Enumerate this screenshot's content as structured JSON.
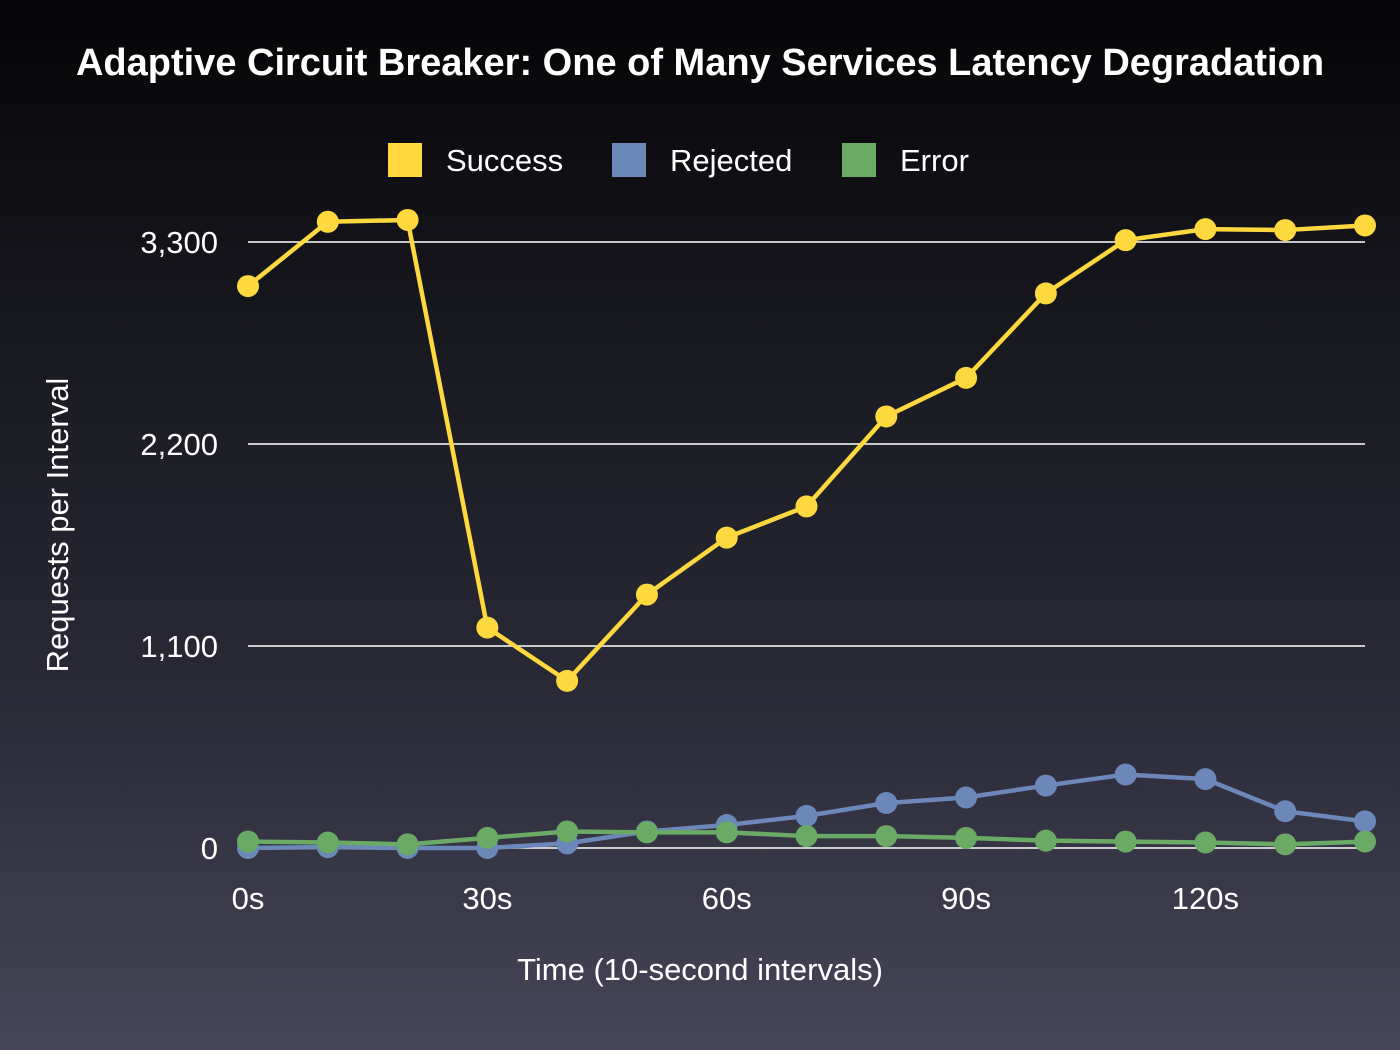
{
  "chart_data": {
    "type": "line",
    "title": "Adaptive Circuit Breaker: One of Many Services Latency Degradation",
    "xlabel": "Time (10-second intervals)",
    "ylabel": "Requests per Interval",
    "x": [
      0,
      10,
      20,
      30,
      40,
      50,
      60,
      70,
      80,
      90,
      100,
      110,
      120,
      130,
      140
    ],
    "xlim": [
      0,
      140
    ],
    "ylim": [
      0,
      3300
    ],
    "x_ticks": [
      0,
      30,
      60,
      90,
      120
    ],
    "x_tick_labels": [
      "0s",
      "30s",
      "60s",
      "90s",
      "120s"
    ],
    "y_ticks": [
      0,
      1100,
      2200,
      3300
    ],
    "y_tick_labels": [
      "0",
      "1,100",
      "2,200",
      "3,300"
    ],
    "grid": true,
    "legend_position": "top-center",
    "series": [
      {
        "name": "Success",
        "color": "#fdd83f",
        "values": [
          3060,
          3410,
          3420,
          1200,
          910,
          1380,
          1690,
          1860,
          2350,
          2560,
          3020,
          3310,
          3370,
          3365,
          3390
        ]
      },
      {
        "name": "Rejected",
        "color": "#6b88b8",
        "values": [
          0,
          5,
          0,
          0,
          25,
          90,
          125,
          175,
          245,
          275,
          340,
          400,
          375,
          200,
          145
        ]
      },
      {
        "name": "Error",
        "color": "#6aaa64",
        "values": [
          35,
          30,
          20,
          55,
          90,
          85,
          85,
          65,
          65,
          55,
          40,
          35,
          30,
          20,
          35
        ]
      }
    ]
  }
}
